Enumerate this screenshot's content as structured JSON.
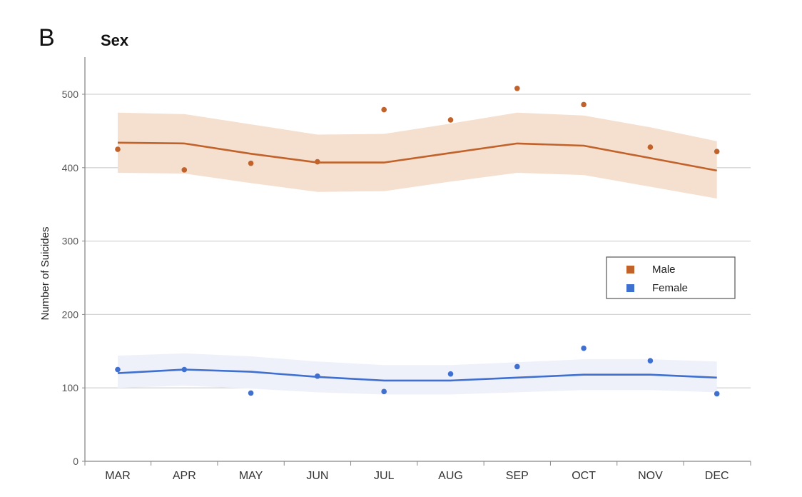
{
  "panel_label": "B",
  "chart_data": {
    "type": "line",
    "title": "Sex",
    "xlabel": "",
    "ylabel": "Number of Suicides",
    "categories": [
      "MAR",
      "APR",
      "MAY",
      "JUN",
      "JUL",
      "AUG",
      "SEP",
      "OCT",
      "NOV",
      "DEC"
    ],
    "ylim": [
      0,
      550
    ],
    "yticks": [
      0,
      100,
      200,
      300,
      400,
      500
    ],
    "grid": true,
    "legend_position": "center-right",
    "series": [
      {
        "name": "Male",
        "color": "#c0622a",
        "band_color": "#f5dfcf",
        "observed": [
          425,
          397,
          406,
          408,
          479,
          465,
          508,
          486,
          428,
          422
        ],
        "fitted": [
          434,
          433,
          419,
          407,
          407,
          420,
          433,
          430,
          413,
          396
        ],
        "upper": [
          475,
          473,
          459,
          445,
          446,
          460,
          475,
          471,
          455,
          436
        ],
        "lower": [
          393,
          392,
          379,
          367,
          368,
          381,
          393,
          390,
          374,
          358
        ]
      },
      {
        "name": "Female",
        "color": "#3f6fcf",
        "band_color": "#eef1fa",
        "observed": [
          125,
          125,
          93,
          116,
          95,
          119,
          129,
          154,
          137,
          92
        ],
        "fitted": [
          120,
          125,
          122,
          115,
          110,
          110,
          114,
          118,
          118,
          114
        ],
        "upper": [
          144,
          147,
          143,
          136,
          131,
          131,
          135,
          139,
          139,
          136
        ],
        "lower": [
          100,
          103,
          99,
          94,
          91,
          91,
          94,
          97,
          97,
          94
        ]
      }
    ]
  }
}
